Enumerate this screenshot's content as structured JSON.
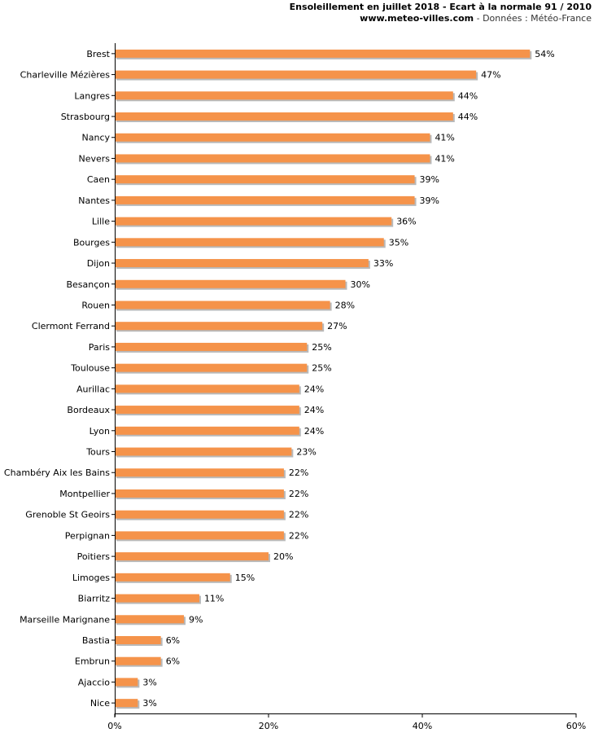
{
  "header": {
    "title": "Ensoleillement en juillet 2018 - Ecart à la normale 91 / 2010",
    "site": "www.meteo-villes.com",
    "source": " - Données : Météo-France"
  },
  "colors": {
    "bar": "#f5934a",
    "bar_shadow": "#b9b9b9",
    "axis": "#000000",
    "grid": "#d9d9d9"
  },
  "chart_data": {
    "type": "bar",
    "orientation": "horizontal",
    "title": "Ensoleillement en juillet 2018 - Ecart à la normale 91 / 2010",
    "xlabel": "",
    "ylabel": "",
    "xlim": [
      0,
      60
    ],
    "ticks": [
      0,
      20,
      40,
      60
    ],
    "tick_labels": [
      "0%",
      "20%",
      "40%",
      "60%"
    ],
    "grid": false,
    "categories": [
      "Brest",
      "Charleville Mézières",
      "Langres",
      "Strasbourg",
      "Nancy",
      "Nevers",
      "Caen",
      "Nantes",
      "Lille",
      "Bourges",
      "Dijon",
      "Besançon",
      "Rouen",
      "Clermont Ferrand",
      "Paris",
      "Toulouse",
      "Aurillac",
      "Bordeaux",
      "Lyon",
      "Tours",
      "Chambéry Aix les Bains",
      "Montpellier",
      "Grenoble St Geoirs",
      "Perpignan",
      "Poitiers",
      "Limoges",
      "Biarritz",
      "Marseille Marignane",
      "Bastia",
      "Embrun",
      "Ajaccio",
      "Nice"
    ],
    "values": [
      54,
      47,
      44,
      44,
      41,
      41,
      39,
      39,
      36,
      35,
      33,
      30,
      28,
      27,
      25,
      25,
      24,
      24,
      24,
      23,
      22,
      22,
      22,
      22,
      20,
      15,
      11,
      9,
      6,
      6,
      3,
      3
    ],
    "value_labels": [
      "54%",
      "47%",
      "44%",
      "44%",
      "41%",
      "41%",
      "39%",
      "39%",
      "36%",
      "35%",
      "33%",
      "30%",
      "28%",
      "27%",
      "25%",
      "25%",
      "24%",
      "24%",
      "24%",
      "23%",
      "22%",
      "22%",
      "22%",
      "22%",
      "20%",
      "15%",
      "11%",
      "9%",
      "6%",
      "6%",
      "3%",
      "3%"
    ]
  }
}
